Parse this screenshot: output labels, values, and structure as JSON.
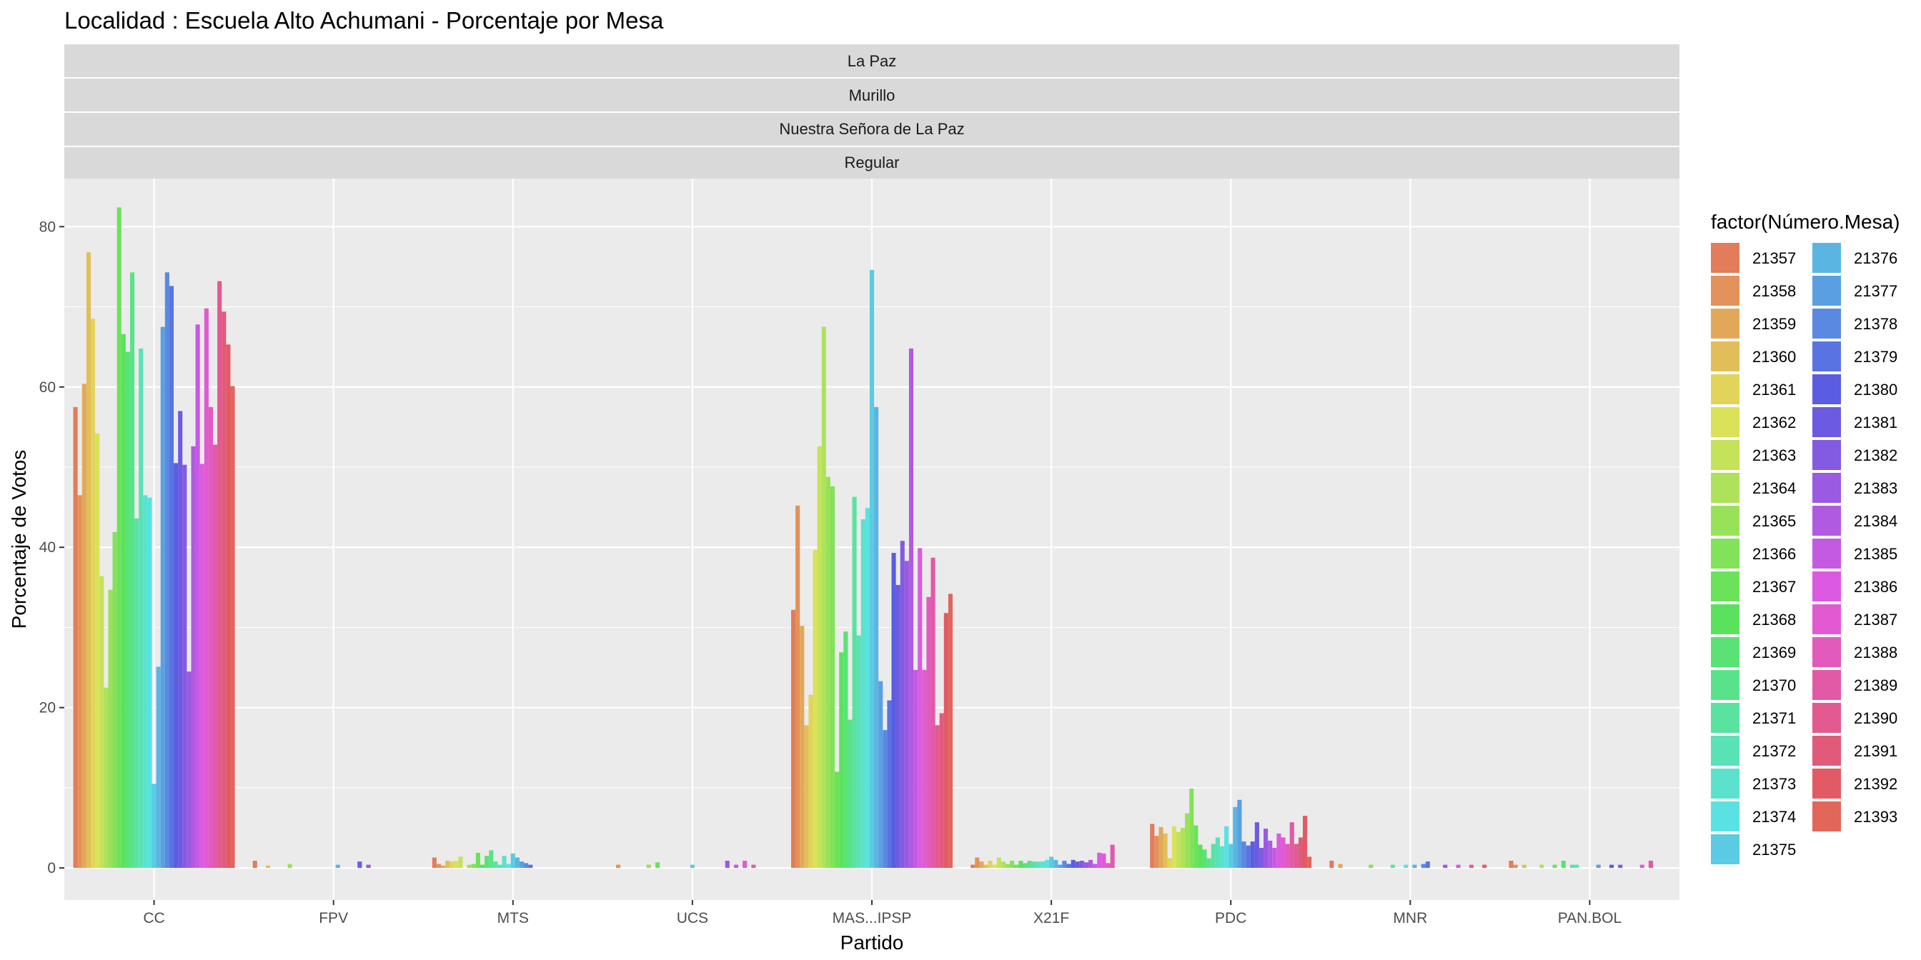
{
  "chart_data": {
    "type": "bar",
    "title": "Localidad : Escuela Alto Achumani - Porcentaje por Mesa",
    "strips": [
      "La Paz",
      "Murillo",
      "Nuestra Señora de La Paz",
      "Regular"
    ],
    "xlabel": "Partido",
    "ylabel": "Porcentaje de Votos",
    "ylim": [
      -4,
      86
    ],
    "yticks": [
      0,
      20,
      40,
      60,
      80
    ],
    "grid": true,
    "legend_position": "right",
    "legend_title": "factor(Número.Mesa)",
    "categories": [
      "CC",
      "FPV",
      "MTS",
      "UCS",
      "MAS...IPSP",
      "X21F",
      "PDC",
      "MNR",
      "PAN.BOL"
    ],
    "mesas": [
      "21357",
      "21358",
      "21359",
      "21360",
      "21361",
      "21362",
      "21363",
      "21364",
      "21365",
      "21366",
      "21367",
      "21368",
      "21369",
      "21370",
      "21371",
      "21372",
      "21373",
      "21374",
      "21375",
      "21376",
      "21377",
      "21378",
      "21379",
      "21380",
      "21381",
      "21382",
      "21383",
      "21384",
      "21385",
      "21386",
      "21387",
      "21388",
      "21389",
      "21390",
      "21391",
      "21392",
      "21393"
    ],
    "values_by_category": {
      "CC": [
        57.5,
        46.5,
        60.4,
        76.8,
        68.5,
        54.2,
        36.4,
        22.5,
        34.7,
        41.9,
        82.4,
        66.6,
        64.4,
        74.3,
        43.6,
        64.8,
        46.5,
        46.2,
        10.5,
        25.1,
        67.5,
        74.3,
        72.6,
        50.5,
        57.0,
        50.3,
        24.5,
        52.6,
        67.8,
        50.4,
        69.8,
        57.5,
        52.8,
        73.2,
        69.4,
        65.3,
        60.1
      ],
      "FPV": [
        0.9,
        0,
        0,
        0.3,
        0,
        0,
        0,
        0,
        0.5,
        0,
        0,
        0,
        0,
        0,
        0,
        0,
        0,
        0,
        0,
        0.4,
        0,
        0,
        0,
        0,
        0.8,
        0,
        0.4,
        0,
        0,
        0,
        0,
        0,
        0,
        0,
        0,
        0,
        0
      ],
      "MTS": [
        1.3,
        0.5,
        0.3,
        0.9,
        0.8,
        0.9,
        1.4,
        0,
        0.4,
        0.5,
        1.9,
        0.4,
        1.5,
        2.2,
        0.8,
        0.4,
        1.5,
        0.5,
        1.8,
        1.3,
        0.8,
        0.6,
        0.4,
        0,
        0,
        0,
        0,
        0,
        0,
        0,
        0,
        0,
        0,
        0,
        0,
        0,
        0
      ],
      "UCS": [
        0,
        0.4,
        0,
        0,
        0,
        0,
        0,
        0,
        0.4,
        0,
        0.7,
        0,
        0,
        0,
        0,
        0,
        0,
        0,
        0.4,
        0,
        0,
        0,
        0,
        0,
        0,
        0,
        0.9,
        0,
        0.4,
        0,
        0.9,
        0,
        0.4,
        0,
        0,
        0,
        0
      ],
      "MAS...IPSP": [
        32.2,
        45.2,
        30.2,
        17.8,
        21.6,
        39.7,
        52.6,
        67.5,
        48.8,
        47.6,
        12.0,
        26.9,
        29.5,
        18.5,
        46.3,
        29.0,
        43.5,
        44.9,
        74.6,
        57.5,
        23.3,
        17.2,
        20.9,
        39.3,
        35.3,
        40.8,
        38.3,
        64.8,
        24.7,
        39.9,
        24.7,
        33.8,
        38.7,
        17.8,
        19.3,
        31.8,
        34.2
      ],
      "X21F": [
        0.4,
        1.3,
        0.8,
        0.4,
        0.9,
        0.4,
        1.3,
        0.8,
        0.5,
        0.9,
        0.4,
        0.9,
        0.6,
        0.9,
        0.8,
        0.8,
        0.8,
        1.0,
        1.4,
        1.0,
        0.4,
        0.9,
        0.5,
        1.0,
        0.8,
        0.9,
        0.7,
        1.0,
        0.5,
        1.9,
        1.8,
        0.6,
        2.9,
        0,
        0,
        0,
        0
      ],
      "PDC": [
        5.5,
        4.0,
        5.1,
        4.3,
        1.2,
        5.2,
        4.5,
        5.0,
        6.8,
        9.9,
        5.3,
        2.9,
        2.3,
        1.2,
        3.0,
        3.8,
        2.7,
        5.2,
        3.0,
        7.6,
        8.5,
        3.3,
        2.8,
        3.3,
        5.7,
        2.5,
        4.9,
        3.4,
        2.5,
        4.3,
        3.8,
        3.0,
        5.7,
        3.0,
        3.8,
        6.5,
        1.4
      ],
      "MNR": [
        0.9,
        0,
        0.5,
        0,
        0,
        0,
        0,
        0,
        0,
        0.4,
        0,
        0,
        0,
        0,
        0.4,
        0,
        0,
        0.4,
        0,
        0.4,
        0,
        0.5,
        0.8,
        0,
        0,
        0,
        0.4,
        0,
        0,
        0.4,
        0,
        0,
        0.4,
        0,
        0,
        0.4,
        0
      ],
      "PAN.BOL": [
        0.9,
        0.4,
        0,
        0.4,
        0,
        0,
        0,
        0.4,
        0,
        0,
        0.4,
        0,
        0.9,
        0,
        0.4,
        0.4,
        0,
        0,
        0,
        0,
        0.4,
        0,
        0,
        0.4,
        0,
        0.4,
        0,
        0,
        0,
        0,
        0.4,
        0,
        0.9,
        0,
        0,
        0,
        0
      ]
    }
  }
}
